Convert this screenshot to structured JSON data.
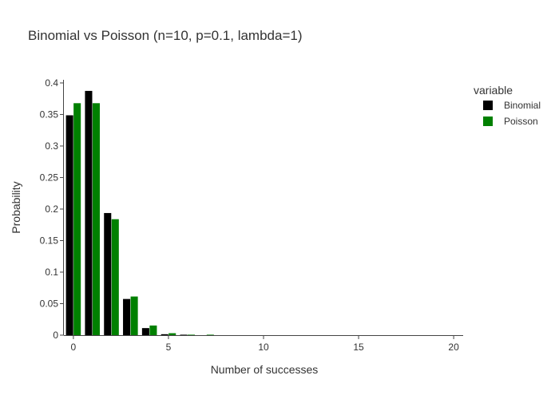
{
  "chart_data": {
    "type": "bar",
    "title": "Binomial vs Poisson (n=10, p=0.1, lambda=1)",
    "xlabel": "Number of successes",
    "ylabel": "Probability",
    "x": [
      0,
      1,
      2,
      3,
      4,
      5,
      6,
      7,
      8,
      9,
      10,
      11,
      12,
      13,
      14,
      15,
      16,
      17,
      18,
      19,
      20
    ],
    "xlim": [
      -0.5,
      20.5
    ],
    "ylim": [
      0,
      0.405
    ],
    "xticks": [
      0,
      5,
      10,
      15,
      20
    ],
    "yticks": [
      0,
      0.05,
      0.1,
      0.15,
      0.2,
      0.25,
      0.3,
      0.35,
      0.4
    ],
    "xtick_labels": [
      "0",
      "5",
      "10",
      "15",
      "20"
    ],
    "ytick_labels": [
      "0",
      "0.05",
      "0.1",
      "0.15",
      "0.2",
      "0.25",
      "0.3",
      "0.35",
      "0.4"
    ],
    "grid": false,
    "legend": {
      "title": "variable",
      "position": "top-right"
    },
    "series": [
      {
        "name": "Binomial",
        "color": "#000000",
        "values": [
          0.3487,
          0.3874,
          0.1937,
          0.0574,
          0.0112,
          0.0015,
          0.0001,
          0,
          0,
          0,
          0,
          0,
          0,
          0,
          0,
          0,
          0,
          0,
          0,
          0,
          0
        ]
      },
      {
        "name": "Poisson",
        "color": "#008000",
        "values": [
          0.3679,
          0.3679,
          0.1839,
          0.0613,
          0.0153,
          0.0031,
          0.0005,
          0.0001,
          0,
          0,
          0,
          0,
          0,
          0,
          0,
          0,
          0,
          0,
          0,
          0,
          0
        ]
      }
    ]
  }
}
